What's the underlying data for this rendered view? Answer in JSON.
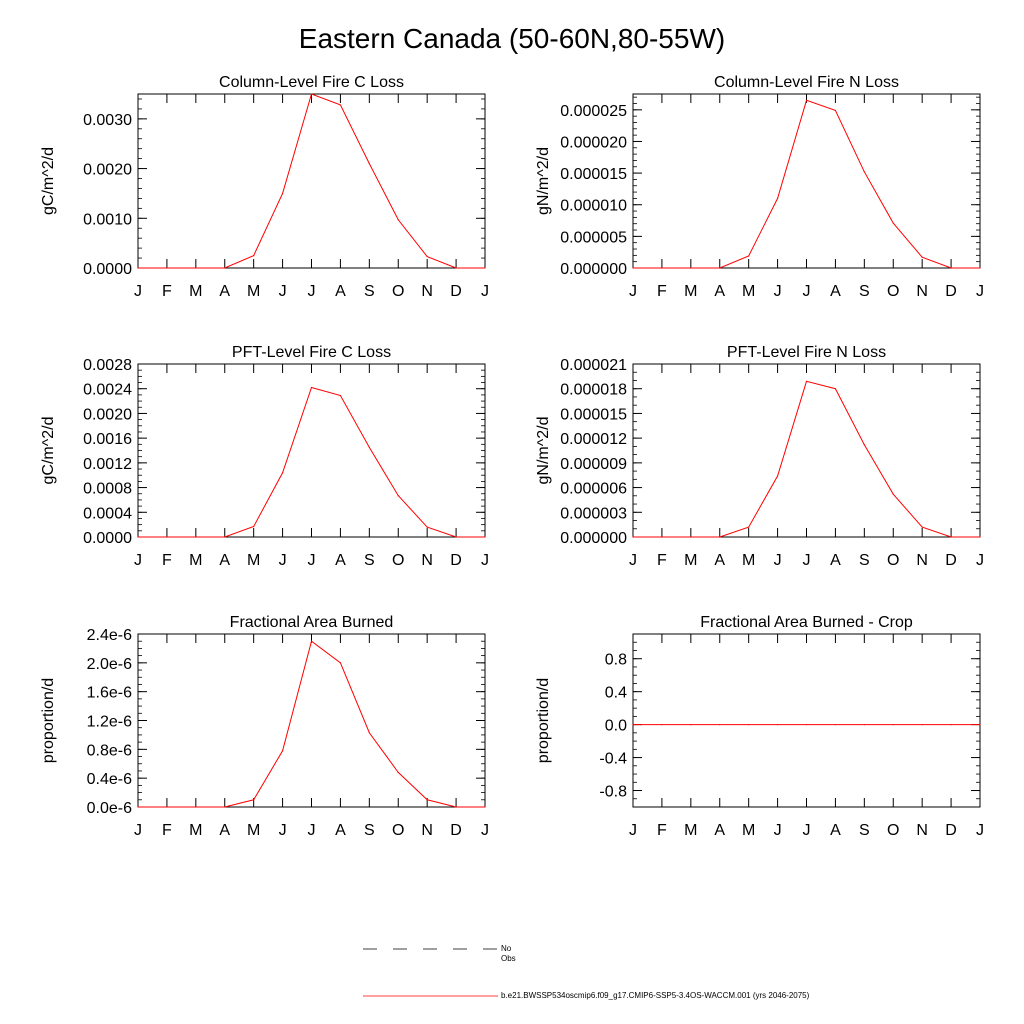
{
  "title": "Eastern Canada (50-60N,80-55W)",
  "colors": {
    "model": "#ff0000",
    "obs": "#000000"
  },
  "chart_data": [
    {
      "type": "line",
      "title": "Column-Level Fire C Loss",
      "ylabel": "gC/m^2/d",
      "categories": [
        "J",
        "F",
        "M",
        "A",
        "M",
        "J",
        "J",
        "A",
        "S",
        "O",
        "N",
        "D",
        "J"
      ],
      "ylim": [
        0,
        0.0035
      ],
      "yticks": [
        0,
        0.001,
        0.002,
        0.003
      ],
      "ytick_labels": [
        "0.0000",
        "0.0010",
        "0.0020",
        "0.0030"
      ],
      "yminor_step": 0.0002,
      "series": [
        {
          "name": "b.e21.BWSSP534oscmip6.f09_g17.CMIP6-SSP5-3.4OS-WACCM.001 (yrs 2046-2075)",
          "values": [
            0,
            0,
            0,
            0,
            0.00025,
            0.0015,
            0.0035,
            0.00328,
            0.0021,
            0.00097,
            0.00023,
            0,
            0
          ]
        }
      ]
    },
    {
      "type": "line",
      "title": "Column-Level Fire N Loss",
      "ylabel": "gN/m^2/d",
      "categories": [
        "J",
        "F",
        "M",
        "A",
        "M",
        "J",
        "J",
        "A",
        "S",
        "O",
        "N",
        "D",
        "J"
      ],
      "ylim": [
        0,
        2.75e-05
      ],
      "yticks": [
        0,
        5e-06,
        1e-05,
        1.5e-05,
        2e-05,
        2.5e-05
      ],
      "ytick_labels": [
        "0.000000",
        "0.000005",
        "0.000010",
        "0.000015",
        "0.000020",
        "0.000025"
      ],
      "yminor_step": 1e-06,
      "series": [
        {
          "name": "b.e21.BWSSP534oscmip6.f09_g17.CMIP6-SSP5-3.4OS-WACCM.001 (yrs 2046-2075)",
          "values": [
            0,
            0,
            0,
            0,
            1.9e-06,
            1.1e-05,
            2.65e-05,
            2.49e-05,
            1.52e-05,
            7.1e-06,
            1.7e-06,
            0,
            0
          ]
        }
      ]
    },
    {
      "type": "line",
      "title": "PFT-Level Fire C Loss",
      "ylabel": "gC/m^2/d",
      "categories": [
        "J",
        "F",
        "M",
        "A",
        "M",
        "J",
        "J",
        "A",
        "S",
        "O",
        "N",
        "D",
        "J"
      ],
      "ylim": [
        0,
        0.0028
      ],
      "yticks": [
        0,
        0.0004,
        0.0008,
        0.0012,
        0.0016,
        0.002,
        0.0024,
        0.0028
      ],
      "ytick_labels": [
        "0.0000",
        "0.0004",
        "0.0008",
        "0.0012",
        "0.0016",
        "0.0020",
        "0.0024",
        "0.0028"
      ],
      "yminor_step": 0.0001,
      "series": [
        {
          "name": "b.e21.BWSSP534oscmip6.f09_g17.CMIP6-SSP5-3.4OS-WACCM.001 (yrs 2046-2075)",
          "values": [
            0,
            0,
            0,
            0,
            0.00017,
            0.00104,
            0.00242,
            0.00229,
            0.00145,
            0.00067,
            0.00016,
            0,
            0
          ]
        }
      ]
    },
    {
      "type": "line",
      "title": "PFT-Level Fire N Loss",
      "ylabel": "gN/m^2/d",
      "categories": [
        "J",
        "F",
        "M",
        "A",
        "M",
        "J",
        "J",
        "A",
        "S",
        "O",
        "N",
        "D",
        "J"
      ],
      "ylim": [
        0,
        2.1e-05
      ],
      "yticks": [
        0,
        3e-06,
        6e-06,
        9e-06,
        1.2e-05,
        1.5e-05,
        1.8e-05,
        2.1e-05
      ],
      "ytick_labels": [
        "0.000000",
        "0.000003",
        "0.000006",
        "0.000009",
        "0.000012",
        "0.000015",
        "0.000018",
        "0.000021"
      ],
      "yminor_step": 1e-06,
      "series": [
        {
          "name": "b.e21.BWSSP534oscmip6.f09_g17.CMIP6-SSP5-3.4OS-WACCM.001 (yrs 2046-2075)",
          "values": [
            0,
            0,
            0,
            0,
            1.2e-06,
            7.4e-06,
            1.89e-05,
            1.8e-05,
            1.12e-05,
            5.2e-06,
            1.2e-06,
            0,
            0
          ]
        }
      ]
    },
    {
      "type": "line",
      "title": "Fractional Area Burned",
      "ylabel": "proportion/d",
      "categories": [
        "J",
        "F",
        "M",
        "A",
        "M",
        "J",
        "J",
        "A",
        "S",
        "O",
        "N",
        "D",
        "J"
      ],
      "ylim": [
        0,
        2.4e-06
      ],
      "yticks": [
        0,
        4e-07,
        8e-07,
        1.2e-06,
        1.6e-06,
        2e-06,
        2.4e-06
      ],
      "ytick_labels": [
        "0.0e-6",
        "0.4e-6",
        "0.8e-6",
        "1.2e-6",
        "1.6e-6",
        "2.0e-6",
        "2.4e-6"
      ],
      "yminor_step": 1e-07,
      "series": [
        {
          "name": "b.e21.BWSSP534oscmip6.f09_g17.CMIP6-SSP5-3.4OS-WACCM.001 (yrs 2046-2075)",
          "values": [
            0,
            0,
            0,
            0,
            1e-07,
            7.8e-07,
            2.3e-06,
            2e-06,
            1.03e-06,
            4.8e-07,
            1e-07,
            0,
            0
          ]
        }
      ]
    },
    {
      "type": "line",
      "title": "Fractional Area Burned - Crop",
      "ylabel": "proportion/d",
      "categories": [
        "J",
        "F",
        "M",
        "A",
        "M",
        "J",
        "J",
        "A",
        "S",
        "O",
        "N",
        "D",
        "J"
      ],
      "ylim": [
        -1,
        1.1
      ],
      "yticks": [
        -0.8,
        -0.4,
        0,
        0.4,
        0.8
      ],
      "ytick_labels": [
        "-0.8",
        "-0.4",
        "0.0",
        "0.4",
        "0.8"
      ],
      "yminor_step": 0.1,
      "series": [
        {
          "name": "b.e21.BWSSP534oscmip6.f09_g17.CMIP6-SSP5-3.4OS-WACCM.001 (yrs 2046-2075)",
          "values": [
            0,
            0,
            0,
            0,
            0,
            0,
            0,
            0,
            0,
            0,
            0,
            0,
            0
          ]
        }
      ]
    }
  ],
  "legend": {
    "items": [
      {
        "label": "No Obs",
        "style": "dashed"
      },
      {
        "label": "b.e21.BWSSP534oscmip6.f09_g17.CMIP6-SSP5-3.4OS-WACCM.001 (yrs 2046-2075)",
        "style": "solid"
      }
    ]
  }
}
